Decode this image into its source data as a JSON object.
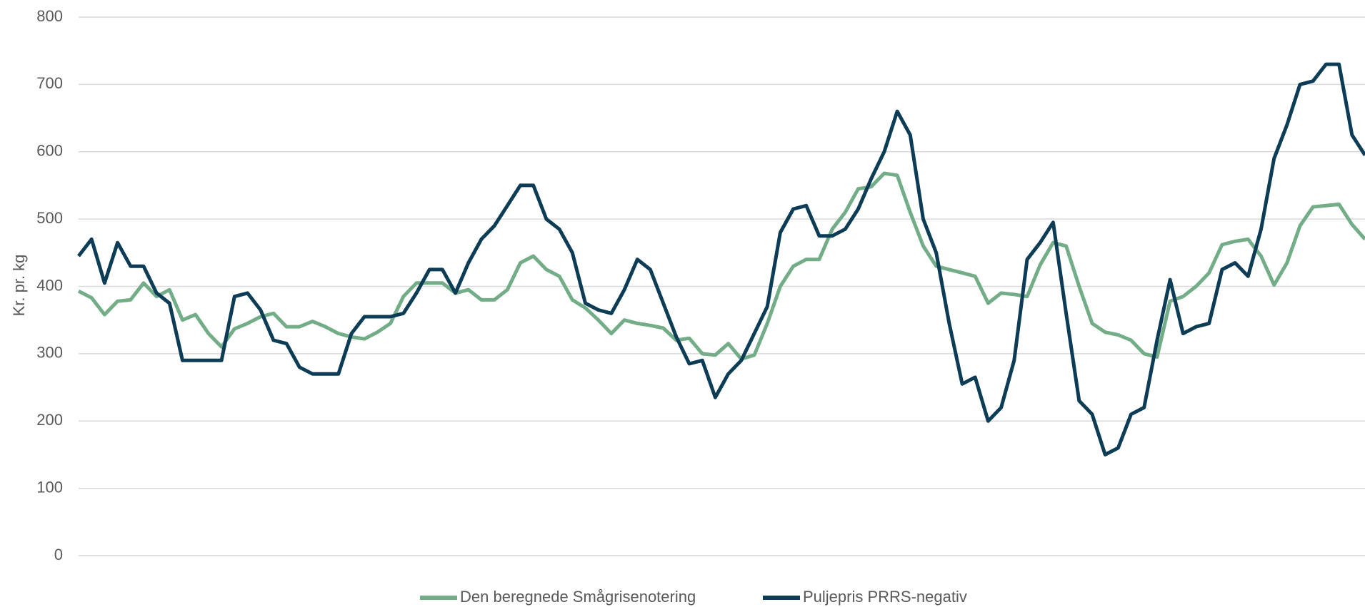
{
  "chart_data": {
    "type": "line",
    "y_label": "Kr. pr. kg",
    "categories": [
      null,
      null,
      null,
      null,
      null,
      null,
      null,
      null,
      null,
      null,
      null,
      null,
      null,
      null,
      null,
      null,
      null,
      null,
      null,
      null,
      null,
      null,
      null,
      null,
      null,
      null,
      null,
      null,
      null,
      null,
      null,
      null,
      null,
      null,
      null,
      null,
      null,
      null,
      null,
      null,
      null,
      null,
      null,
      null,
      null,
      null,
      null,
      null,
      null,
      null,
      null,
      null,
      null,
      null,
      null,
      null,
      null,
      null,
      null,
      null,
      null,
      null,
      null,
      null,
      null,
      null,
      null,
      null,
      null,
      null,
      null,
      null,
      null,
      null,
      null,
      null,
      null,
      null,
      null,
      null,
      null,
      null,
      null,
      null,
      null,
      null,
      null,
      null,
      null,
      null,
      null,
      null,
      null,
      null,
      null,
      null,
      null,
      null,
      null,
      null
    ],
    "series": [
      {
        "name": "Den beregnede Smågrisenotering",
        "color": "#72ad87",
        "values": [
          393,
          383,
          358,
          378,
          380,
          405,
          385,
          395,
          350,
          358,
          330,
          310,
          337,
          345,
          355,
          360,
          340,
          340,
          348,
          340,
          330,
          325,
          322,
          332,
          345,
          385,
          405,
          405,
          405,
          390,
          395,
          380,
          380,
          395,
          435,
          445,
          425,
          415,
          380,
          368,
          350,
          330,
          350,
          345,
          342,
          338,
          320,
          323,
          300,
          298,
          315,
          292,
          298,
          345,
          400,
          430,
          440,
          440,
          485,
          510,
          545,
          548,
          568,
          565,
          510,
          460,
          430,
          425,
          420,
          415,
          375,
          390,
          388,
          385,
          432,
          465,
          460,
          400,
          345,
          332,
          328,
          320,
          300,
          295,
          378,
          385,
          400,
          420,
          462,
          467,
          470,
          445,
          402,
          435,
          490,
          518,
          520,
          522,
          492,
          470
        ]
      },
      {
        "name": "Puljepris PRRS-negativ",
        "color": "#0d3d56",
        "values": [
          445,
          470,
          405,
          465,
          430,
          430,
          390,
          375,
          290,
          290,
          290,
          290,
          385,
          390,
          365,
          320,
          315,
          280,
          270,
          270,
          270,
          330,
          355,
          355,
          355,
          360,
          390,
          425,
          425,
          390,
          435,
          470,
          490,
          520,
          550,
          550,
          500,
          485,
          450,
          375,
          365,
          360,
          395,
          440,
          425,
          375,
          325,
          285,
          290,
          235,
          270,
          290,
          330,
          370,
          480,
          515,
          520,
          475,
          475,
          485,
          515,
          560,
          600,
          660,
          625,
          500,
          450,
          345,
          255,
          265,
          200,
          220,
          290,
          440,
          465,
          495,
          360,
          230,
          210,
          150,
          160,
          210,
          220,
          320,
          410,
          330,
          340,
          345,
          425,
          435,
          415,
          485,
          590,
          640,
          700,
          705,
          730,
          730,
          625,
          595
        ]
      }
    ],
    "ylim": [
      0,
      800
    ],
    "yticks": [
      0,
      100,
      200,
      300,
      400,
      500,
      600,
      700,
      800
    ],
    "grid": true
  }
}
